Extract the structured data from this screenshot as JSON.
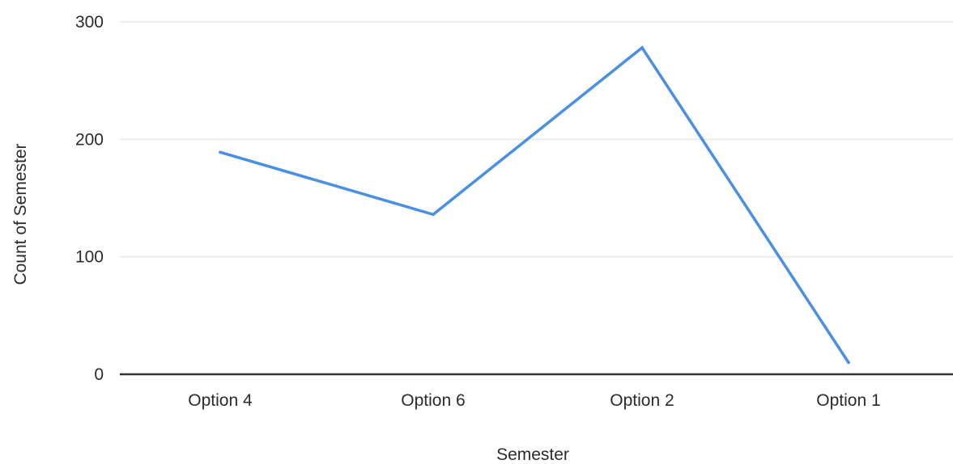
{
  "chart_data": {
    "type": "line",
    "title": "",
    "xlabel": "Semester",
    "ylabel": "Count of Semester",
    "categories": [
      "Option 4",
      "Option 6",
      "Option 2",
      "Option 1"
    ],
    "series": [
      {
        "values": [
          189,
          136,
          278,
          10
        ]
      }
    ],
    "ylim": [
      0,
      300
    ],
    "yticks": [
      0,
      100,
      200,
      300
    ],
    "ytick_labels": [
      "0",
      "100",
      "200",
      "300"
    ],
    "grid": true,
    "legend": "none",
    "colors": {
      "series": "#4a90e2",
      "grid": "#e6e6e6",
      "axis": "#333333",
      "text": "#2b2b2b"
    }
  }
}
